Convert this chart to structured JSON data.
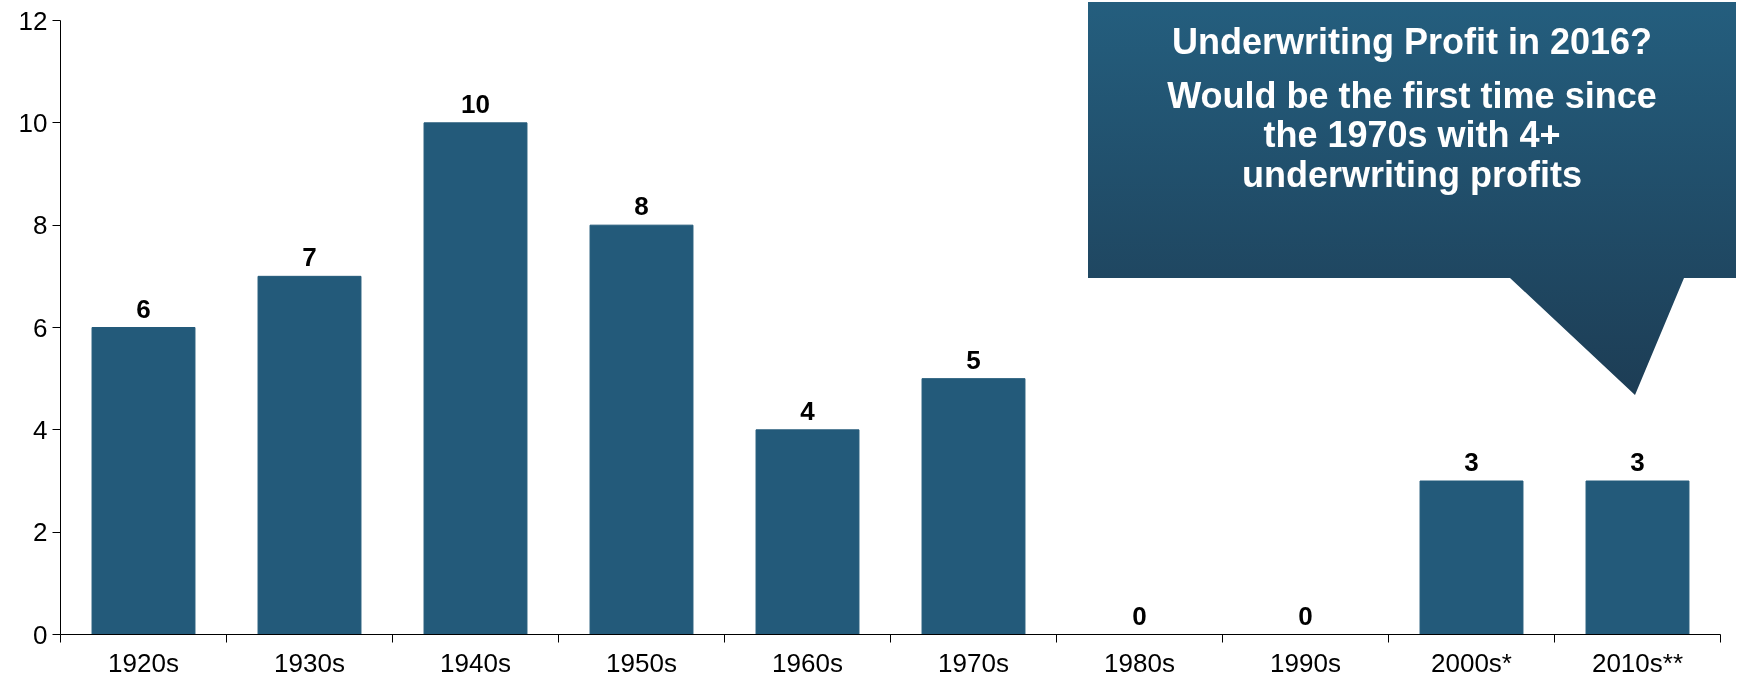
{
  "chart_data": {
    "type": "bar",
    "categories": [
      "1920s",
      "1930s",
      "1940s",
      "1950s",
      "1960s",
      "1970s",
      "1980s",
      "1990s",
      "2000s*",
      "2010s**"
    ],
    "values": [
      6,
      7,
      10,
      8,
      4,
      5,
      0,
      0,
      3,
      3
    ],
    "color": "#235a7a",
    "ylim": [
      0,
      12
    ],
    "yticks": [
      0,
      2,
      4,
      6,
      8,
      10,
      12
    ],
    "grid": false,
    "data_labels": true,
    "annotations": [
      "Underwriting Profit in 2016?",
      "Would be the first time since\nthe 1970s with 4+\nunderwriting profits"
    ]
  }
}
